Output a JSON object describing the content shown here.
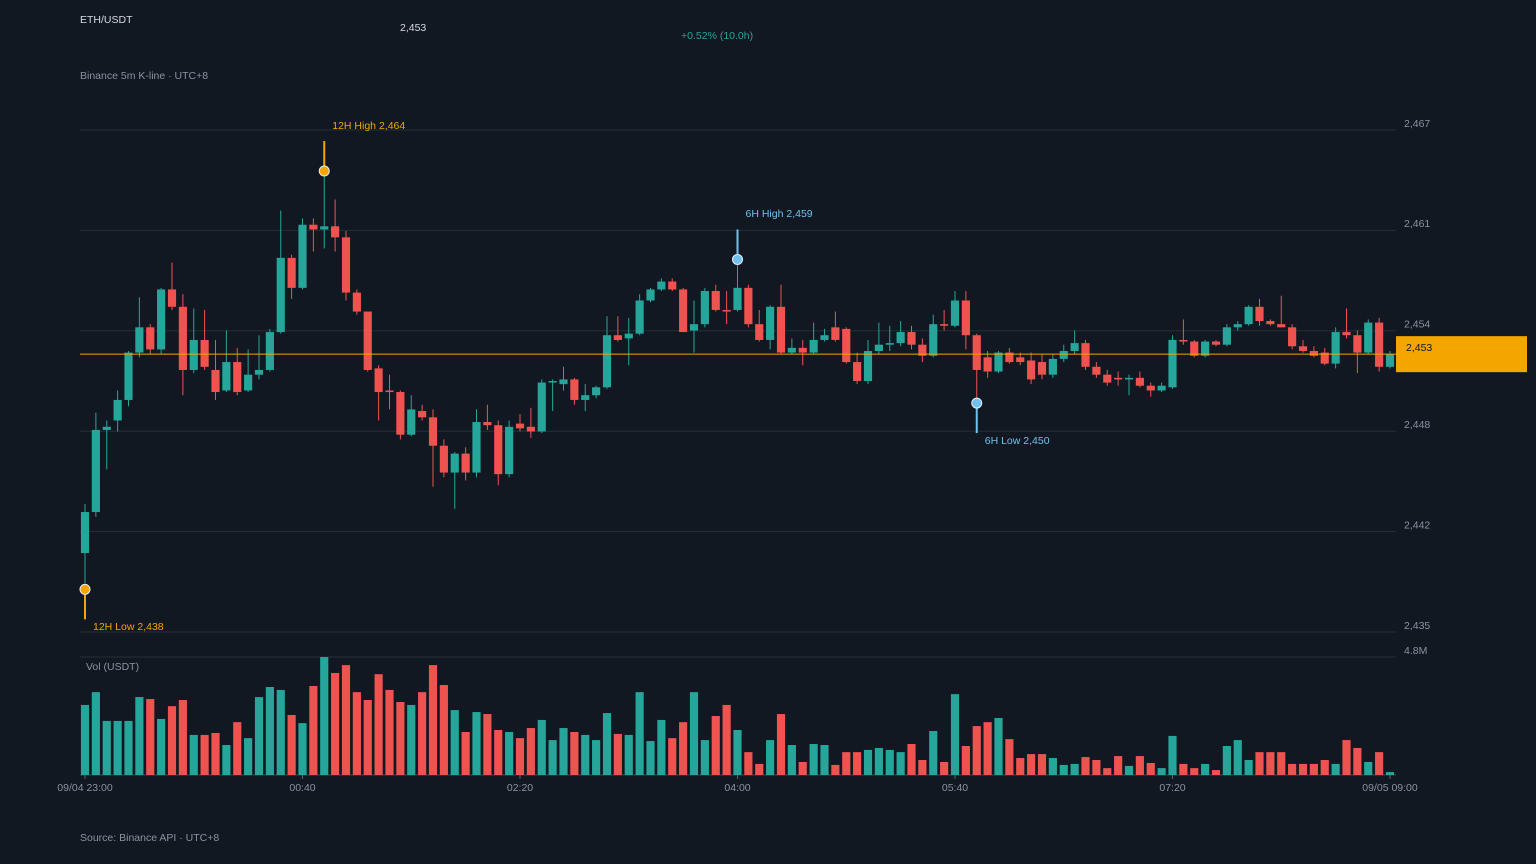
{
  "chart_data": {
    "type": "candlestick",
    "title": "ETH/USDT",
    "price_text": "2,453",
    "change_text": "+0.52% (10.0h)",
    "subtitle": "Binance 5m K-line · UTC+8",
    "source": "Source: Binance API · UTC+8",
    "up_color": "#26a69a",
    "down_color": "#ef5350",
    "grid": true,
    "ylim": [
      2435.2,
      2467.0
    ],
    "yticks": [
      {
        "value": 2435.2,
        "label": "2,435"
      },
      {
        "value": 2441.56,
        "label": "2,442"
      },
      {
        "value": 2447.92,
        "label": "2,448"
      },
      {
        "value": 2454.28,
        "label": "2,454"
      },
      {
        "value": 2460.64,
        "label": "2,461"
      },
      {
        "value": 2467.0,
        "label": "2,467"
      }
    ],
    "xlim": [
      0,
      120
    ],
    "xticks": [
      {
        "value": 0,
        "label": "09/04 23:00"
      },
      {
        "value": 20,
        "label": "00:40"
      },
      {
        "value": 40,
        "label": "02:20"
      },
      {
        "value": 60,
        "label": "04:00"
      },
      {
        "value": 80,
        "label": "05:40"
      },
      {
        "value": 100,
        "label": "07:20"
      },
      {
        "value": 120,
        "label": "09/05 09:00"
      }
    ],
    "current_price": {
      "value": 2452.8,
      "label": "2,453",
      "color": "#f5a500"
    },
    "open": [
      2440.2,
      2442.8,
      2448.0,
      2448.6,
      2449.9,
      2452.9,
      2454.5,
      2453.1,
      2456.9,
      2455.8,
      2451.8,
      2453.7,
      2451.8,
      2450.5,
      2452.3,
      2450.5,
      2451.5,
      2451.8,
      2454.2,
      2458.9,
      2457.0,
      2461.0,
      2460.7,
      2460.9,
      2460.2,
      2456.7,
      2455.5,
      2451.9,
      2450.5,
      2450.4,
      2447.7,
      2449.2,
      2448.8,
      2447.0,
      2445.3,
      2446.5,
      2445.3,
      2448.5,
      2448.3,
      2445.2,
      2448.4,
      2448.2,
      2447.9,
      2451.0,
      2450.9,
      2451.2,
      2449.9,
      2450.2,
      2450.7,
      2454.0,
      2453.8,
      2454.1,
      2456.2,
      2456.9,
      2457.4,
      2456.9,
      2454.3,
      2454.7,
      2456.8,
      2455.6,
      2455.6,
      2457.0,
      2454.7,
      2453.7,
      2455.8,
      2452.9,
      2453.2,
      2452.9,
      2453.7,
      2454.5,
      2454.4,
      2452.3,
      2451.1,
      2453.0,
      2453.4,
      2453.5,
      2454.2,
      2453.4,
      2452.7,
      2454.7,
      2454.6,
      2456.2,
      2454.0,
      2452.6,
      2451.7,
      2452.9,
      2452.6,
      2452.4,
      2452.3,
      2451.5,
      2452.5,
      2453.0,
      2453.5,
      2452.0,
      2451.5,
      2451.3,
      2451.2,
      2451.3,
      2450.8,
      2450.5,
      2450.7,
      2453.7,
      2453.6,
      2452.7,
      2453.6,
      2453.4,
      2454.5,
      2454.7,
      2455.8,
      2454.9,
      2454.7,
      2454.5,
      2453.3,
      2453.0,
      2452.9,
      2452.2,
      2454.2,
      2454.0,
      2452.9,
      2454.8,
      2452.0
    ],
    "high": [
      2443.3,
      2449.1,
      2448.6,
      2450.5,
      2453.0,
      2456.4,
      2454.7,
      2457.0,
      2458.6,
      2456.6,
      2455.7,
      2455.6,
      2453.7,
      2454.3,
      2453.2,
      2453.1,
      2454.0,
      2454.4,
      2461.9,
      2459.1,
      2461.4,
      2461.4,
      2464.4,
      2462.6,
      2460.6,
      2456.9,
      2455.5,
      2452.1,
      2451.5,
      2450.5,
      2450.2,
      2449.6,
      2449.3,
      2447.4,
      2446.6,
      2446.9,
      2449.3,
      2449.6,
      2448.6,
      2448.6,
      2449.0,
      2449.4,
      2451.2,
      2451.2,
      2452.0,
      2451.3,
      2450.9,
      2450.8,
      2455.2,
      2455.2,
      2455.1,
      2456.6,
      2457.0,
      2457.6,
      2457.6,
      2457.0,
      2456.2,
      2457.0,
      2457.2,
      2456.8,
      2458.8,
      2457.2,
      2455.6,
      2455.9,
      2457.2,
      2453.8,
      2453.7,
      2454.8,
      2454.4,
      2455.5,
      2454.5,
      2452.9,
      2453.7,
      2454.8,
      2454.6,
      2454.9,
      2454.6,
      2453.8,
      2455.3,
      2455.6,
      2456.8,
      2456.8,
      2454.1,
      2453.0,
      2453.0,
      2453.2,
      2452.9,
      2452.9,
      2452.8,
      2452.8,
      2453.4,
      2454.3,
      2453.7,
      2452.3,
      2451.8,
      2451.7,
      2451.5,
      2451.7,
      2451.0,
      2451.0,
      2454.0,
      2455.0,
      2453.7,
      2453.7,
      2453.7,
      2454.7,
      2454.9,
      2455.9,
      2456.3,
      2455.0,
      2456.5,
      2454.7,
      2453.7,
      2453.3,
      2453.2,
      2454.5,
      2455.7,
      2454.3,
      2455.0,
      2455.1,
      2453.0
    ],
    "low": [
      2437.9,
      2442.5,
      2445.5,
      2447.9,
      2449.5,
      2452.6,
      2452.8,
      2452.8,
      2455.6,
      2450.2,
      2451.6,
      2451.8,
      2449.9,
      2450.4,
      2450.2,
      2450.4,
      2451.2,
      2451.7,
      2454.1,
      2456.3,
      2456.9,
      2459.3,
      2459.5,
      2459.3,
      2456.2,
      2455.3,
      2451.7,
      2448.6,
      2449.3,
      2447.4,
      2447.6,
      2448.6,
      2444.4,
      2445.0,
      2443.0,
      2444.8,
      2445.0,
      2448.0,
      2444.5,
      2445.0,
      2447.9,
      2447.5,
      2447.8,
      2449.2,
      2450.5,
      2449.6,
      2449.2,
      2450.0,
      2450.6,
      2453.6,
      2452.1,
      2454.0,
      2456.1,
      2456.8,
      2456.8,
      2454.2,
      2452.9,
      2454.5,
      2455.5,
      2454.7,
      2455.5,
      2454.5,
      2453.6,
      2453.1,
      2452.8,
      2452.8,
      2452.1,
      2452.8,
      2453.6,
      2453.6,
      2452.2,
      2450.9,
      2450.9,
      2452.8,
      2453.0,
      2453.3,
      2453.1,
      2452.3,
      2452.6,
      2454.3,
      2454.5,
      2453.1,
      2449.7,
      2451.3,
      2451.6,
      2452.2,
      2452.1,
      2450.9,
      2451.2,
      2451.3,
      2452.3,
      2452.8,
      2451.8,
      2451.3,
      2450.8,
      2450.8,
      2450.2,
      2450.7,
      2450.1,
      2450.4,
      2450.6,
      2453.4,
      2452.6,
      2452.6,
      2453.3,
      2453.3,
      2454.3,
      2454.6,
      2454.6,
      2454.6,
      2454.5,
      2453.1,
      2452.9,
      2452.6,
      2452.1,
      2451.9,
      2453.8,
      2451.6,
      2452.8,
      2451.7,
      2451.9
    ],
    "close": [
      2442.8,
      2448.0,
      2448.2,
      2449.9,
      2452.9,
      2454.5,
      2453.1,
      2456.9,
      2455.8,
      2451.8,
      2453.7,
      2452.0,
      2450.4,
      2452.3,
      2450.4,
      2451.5,
      2451.8,
      2454.2,
      2458.9,
      2457.0,
      2461.0,
      2460.7,
      2460.9,
      2460.2,
      2456.7,
      2455.5,
      2451.8,
      2450.4,
      2450.4,
      2447.7,
      2449.3,
      2448.8,
      2447.0,
      2445.3,
      2446.5,
      2445.3,
      2448.5,
      2448.3,
      2445.2,
      2448.2,
      2448.1,
      2447.9,
      2451.0,
      2451.1,
      2451.2,
      2449.9,
      2450.2,
      2450.7,
      2454.0,
      2453.7,
      2454.1,
      2456.2,
      2456.9,
      2457.4,
      2456.9,
      2454.2,
      2454.7,
      2456.8,
      2455.6,
      2455.5,
      2457.0,
      2454.7,
      2453.7,
      2455.8,
      2452.9,
      2453.2,
      2452.9,
      2453.7,
      2454.0,
      2453.7,
      2452.3,
      2451.1,
      2453.0,
      2453.4,
      2453.5,
      2454.2,
      2453.4,
      2452.7,
      2454.7,
      2454.6,
      2456.2,
      2454.0,
      2451.8,
      2451.7,
      2452.9,
      2452.3,
      2452.3,
      2451.2,
      2451.5,
      2452.5,
      2453.0,
      2453.5,
      2452.0,
      2451.5,
      2451.0,
      2451.2,
      2451.3,
      2450.8,
      2450.5,
      2450.8,
      2453.7,
      2453.6,
      2452.7,
      2453.6,
      2453.4,
      2454.5,
      2454.7,
      2455.8,
      2454.9,
      2454.7,
      2454.5,
      2453.3,
      2453.0,
      2452.7,
      2452.2,
      2454.2,
      2454.0,
      2452.9,
      2454.8,
      2452.0,
      2452.8
    ],
    "annotations": [
      {
        "text": "12H High 2,464",
        "x": 22,
        "y": 2464.4,
        "side": "high",
        "color": "#f5a500"
      },
      {
        "text": "12H Low 2,438",
        "x": 0,
        "y": 2437.9,
        "side": "low",
        "color": "#f5a500"
      },
      {
        "text": "6H High 2,459",
        "x": 60,
        "y": 2458.8,
        "side": "high",
        "color": "#6ec1f0"
      },
      {
        "text": "6H Low 2,450",
        "x": 82,
        "y": 2449.7,
        "side": "low",
        "color": "#6ec1f0"
      }
    ],
    "volume": {
      "label": "Vol (USDT)",
      "ylim": [
        0,
        4.8
      ],
      "yticks": [
        {
          "value": 4.8,
          "label": "4.8M"
        }
      ],
      "values": [
        2.85,
        3.37,
        2.2,
        2.2,
        2.2,
        3.17,
        3.09,
        2.28,
        2.8,
        3.05,
        1.63,
        1.63,
        1.71,
        1.22,
        2.15,
        1.5,
        3.17,
        3.58,
        3.46,
        2.44,
        2.11,
        3.62,
        4.8,
        4.15,
        4.47,
        3.37,
        3.05,
        4.1,
        3.46,
        2.97,
        2.85,
        3.37,
        4.47,
        3.66,
        2.64,
        1.75,
        2.56,
        2.48,
        1.83,
        1.75,
        1.5,
        1.91,
        2.24,
        1.42,
        1.91,
        1.75,
        1.63,
        1.42,
        2.52,
        1.67,
        1.63,
        3.37,
        1.38,
        2.24,
        1.5,
        2.15,
        3.37,
        1.42,
        2.4,
        2.85,
        1.83,
        0.93,
        0.45,
        1.42,
        2.48,
        1.22,
        0.53,
        1.26,
        1.22,
        0.41,
        0.93,
        0.93,
        1.02,
        1.1,
        1.02,
        0.93,
        1.26,
        0.61,
        1.79,
        0.53,
        3.29,
        1.18,
        1.99,
        2.15,
        2.32,
        1.46,
        0.69,
        0.85,
        0.85,
        0.69,
        0.41,
        0.45,
        0.73,
        0.61,
        0.28,
        0.77,
        0.37,
        0.77,
        0.49,
        0.28,
        1.59,
        0.45,
        0.28,
        0.45,
        0.2,
        1.18,
        1.42,
        0.61,
        0.93,
        0.93,
        0.93,
        0.45,
        0.45,
        0.45,
        0.61,
        0.45,
        1.42,
        1.1,
        0.53,
        0.93,
        0.12
      ]
    }
  }
}
